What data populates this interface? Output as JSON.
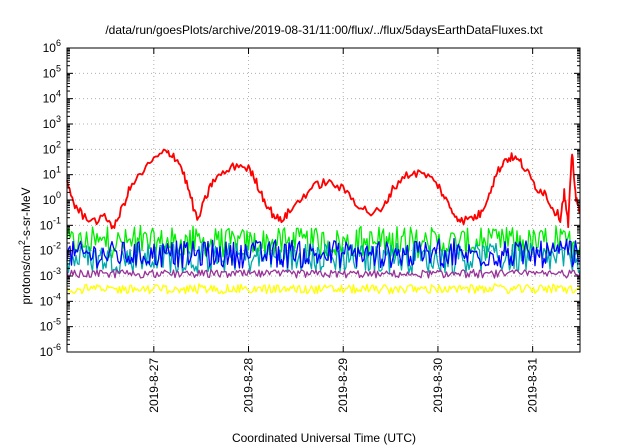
{
  "chart_data": {
    "type": "line",
    "title": "/data/run/goesPlots/archive/2019-08-31/11:00/flux/../flux/5daysEarthDataFluxes.txt",
    "xlabel": "Coordinated Universal Time (UTC)",
    "ylabel": {
      "base": "protons/cm",
      "sup": "2",
      "rest": "-s-sr-MeV"
    },
    "x_scale": "time",
    "y_scale": "log",
    "xlim": [
      "2019-08-26T02:00",
      "2019-08-31T12:00"
    ],
    "ylim": [
      1e-06,
      1000000.0
    ],
    "grid": true,
    "legend": "none",
    "x_ticks": [
      {
        "date": "2019-08-27",
        "label": "2019-8-27"
      },
      {
        "date": "2019-08-28",
        "label": "2019-8-28"
      },
      {
        "date": "2019-08-29",
        "label": "2019-8-29"
      },
      {
        "date": "2019-08-30",
        "label": "2019-8-30"
      },
      {
        "date": "2019-08-31",
        "label": "2019-8-31"
      }
    ],
    "y_ticks": [
      {
        "value": 1e-06,
        "base": "10",
        "exp": "-6"
      },
      {
        "value": 1e-05,
        "base": "10",
        "exp": "-5"
      },
      {
        "value": 0.0001,
        "base": "10",
        "exp": "-4"
      },
      {
        "value": 0.001,
        "base": "10",
        "exp": "-3"
      },
      {
        "value": 0.01,
        "base": "10",
        "exp": "-2"
      },
      {
        "value": 0.1,
        "base": "10",
        "exp": "-1"
      },
      {
        "value": 1,
        "base": "10",
        "exp": "0"
      },
      {
        "value": 10,
        "base": "10",
        "exp": "1"
      },
      {
        "value": 100,
        "base": "10",
        "exp": "2"
      },
      {
        "value": 1000,
        "base": "10",
        "exp": "3"
      },
      {
        "value": 10000,
        "base": "10",
        "exp": "4"
      },
      {
        "value": 100000,
        "base": "10",
        "exp": "5"
      },
      {
        "value": 1000000,
        "base": "10",
        "exp": "6"
      }
    ],
    "series": [
      {
        "color": "#ff0000",
        "style": "smooth",
        "points": [
          [
            "2019-08-26T02:00",
            5
          ],
          [
            "2019-08-26T04:00",
            0.6
          ],
          [
            "2019-08-26T06:00",
            0.25
          ],
          [
            "2019-08-26T09:00",
            0.15
          ],
          [
            "2019-08-26T12:00",
            0.2
          ],
          [
            "2019-08-26T14:00",
            0.08
          ],
          [
            "2019-08-26T16:00",
            0.5
          ],
          [
            "2019-08-26T18:00",
            3
          ],
          [
            "2019-08-26T21:00",
            12
          ],
          [
            "2019-08-27T00:00",
            40
          ],
          [
            "2019-08-27T03:00",
            80
          ],
          [
            "2019-08-27T05:00",
            60
          ],
          [
            "2019-08-27T07:00",
            20
          ],
          [
            "2019-08-27T09:00",
            2
          ],
          [
            "2019-08-27T11:00",
            0.15
          ],
          [
            "2019-08-27T13:00",
            1
          ],
          [
            "2019-08-27T15:00",
            6
          ],
          [
            "2019-08-27T18:00",
            12
          ],
          [
            "2019-08-27T21:00",
            25
          ],
          [
            "2019-08-28T00:00",
            18
          ],
          [
            "2019-08-28T02:00",
            5
          ],
          [
            "2019-08-28T04:00",
            1
          ],
          [
            "2019-08-28T06:00",
            0.3
          ],
          [
            "2019-08-28T08:00",
            0.15
          ],
          [
            "2019-08-28T10:00",
            0.3
          ],
          [
            "2019-08-28T13:00",
            1
          ],
          [
            "2019-08-28T16:00",
            3
          ],
          [
            "2019-08-28T19:00",
            5
          ],
          [
            "2019-08-28T22:00",
            4
          ],
          [
            "2019-08-29T01:00",
            2
          ],
          [
            "2019-08-29T04:00",
            0.6
          ],
          [
            "2019-08-29T07:00",
            0.3
          ],
          [
            "2019-08-29T10:00",
            0.4
          ],
          [
            "2019-08-29T12:00",
            2
          ],
          [
            "2019-08-29T15:00",
            8
          ],
          [
            "2019-08-29T18:00",
            12
          ],
          [
            "2019-08-29T21:00",
            10
          ],
          [
            "2019-08-30T00:00",
            4
          ],
          [
            "2019-08-30T02:00",
            1
          ],
          [
            "2019-08-30T04:00",
            0.3
          ],
          [
            "2019-08-30T06:00",
            0.15
          ],
          [
            "2019-08-30T09:00",
            0.2
          ],
          [
            "2019-08-30T11:00",
            0.3
          ],
          [
            "2019-08-30T13:00",
            2
          ],
          [
            "2019-08-30T15:00",
            12
          ],
          [
            "2019-08-30T17:00",
            40
          ],
          [
            "2019-08-30T19:00",
            50
          ],
          [
            "2019-08-30T21:00",
            30
          ],
          [
            "2019-08-30T23:00",
            10
          ],
          [
            "2019-08-31T01:00",
            3
          ],
          [
            "2019-08-31T03:00",
            2
          ],
          [
            "2019-08-31T05:00",
            0.5
          ],
          [
            "2019-08-31T07:00",
            0.2
          ],
          [
            "2019-08-31T08:00",
            2
          ],
          [
            "2019-08-31T09:00",
            0.1
          ],
          [
            "2019-08-31T10:00",
            80
          ],
          [
            "2019-08-31T11:00",
            1
          ],
          [
            "2019-08-31T12:00",
            0.3
          ]
        ]
      },
      {
        "color": "#00ee00",
        "style": "noise",
        "baseline": 0.02,
        "range": [
          0.005,
          0.1
        ]
      },
      {
        "color": "#00aaaa",
        "style": "noise",
        "baseline": 0.005,
        "range": [
          0.001,
          0.02
        ]
      },
      {
        "color": "#0000ff",
        "style": "noise",
        "baseline": 0.007,
        "range": [
          0.002,
          0.03
        ]
      },
      {
        "color": "#993399",
        "style": "noise",
        "baseline": 0.0012,
        "range": [
          0.0008,
          0.0018
        ]
      },
      {
        "color": "#ffff00",
        "style": "noise",
        "baseline": 0.0003,
        "range": [
          0.0002,
          0.0005
        ]
      }
    ]
  }
}
